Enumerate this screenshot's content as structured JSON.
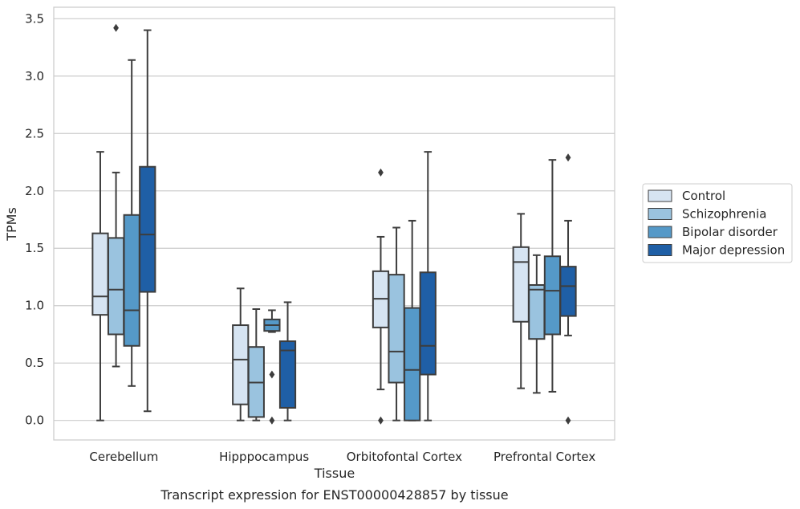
{
  "chart_data": {
    "type": "box",
    "title": "Transcript expression for ENST00000428857 by tissue",
    "xlabel": "Tissue",
    "ylabel": "TPMs",
    "ylim": [
      -0.17,
      3.6
    ],
    "yticks": [
      "0.0",
      "0.5",
      "1.0",
      "1.5",
      "2.0",
      "2.5",
      "3.0",
      "3.5"
    ],
    "grid": "horizontal",
    "legend_position": "right",
    "categories": [
      "Cerebellum",
      "Hipppocampus",
      "Orbitofontal Cortex",
      "Prefrontal Cortex"
    ],
    "series": [
      {
        "name": "Control",
        "color": "#d6e4f2",
        "boxes": [
          {
            "whislo": 0.0,
            "q1": 0.92,
            "med": 1.08,
            "q3": 1.63,
            "whishi": 2.34,
            "fliers": []
          },
          {
            "whislo": 0.0,
            "q1": 0.14,
            "med": 0.53,
            "q3": 0.83,
            "whishi": 1.15,
            "fliers": []
          },
          {
            "whislo": 0.27,
            "q1": 0.81,
            "med": 1.06,
            "q3": 1.3,
            "whishi": 1.6,
            "fliers": [
              0.0,
              2.16
            ]
          },
          {
            "whislo": 0.28,
            "q1": 0.86,
            "med": 1.38,
            "q3": 1.51,
            "whishi": 1.8,
            "fliers": []
          }
        ]
      },
      {
        "name": "Schizophrenia",
        "color": "#9ac3df",
        "boxes": [
          {
            "whislo": 0.47,
            "q1": 0.75,
            "med": 1.14,
            "q3": 1.59,
            "whishi": 2.16,
            "fliers": [
              3.42
            ]
          },
          {
            "whislo": 0.0,
            "q1": 0.03,
            "med": 0.33,
            "q3": 0.64,
            "whishi": 0.97,
            "fliers": []
          },
          {
            "whislo": 0.0,
            "q1": 0.33,
            "med": 0.6,
            "q3": 1.27,
            "whishi": 1.68,
            "fliers": []
          },
          {
            "whislo": 0.24,
            "q1": 0.71,
            "med": 1.14,
            "q3": 1.18,
            "whishi": 1.44,
            "fliers": []
          }
        ]
      },
      {
        "name": "Bipolar disorder",
        "color": "#5599c8",
        "boxes": [
          {
            "whislo": 0.3,
            "q1": 0.65,
            "med": 0.96,
            "q3": 1.79,
            "whishi": 3.14,
            "fliers": []
          },
          {
            "whislo": 0.77,
            "q1": 0.78,
            "med": 0.83,
            "q3": 0.88,
            "whishi": 0.96,
            "fliers": [
              0.4,
              0.0
            ]
          },
          {
            "whislo": 0.0,
            "q1": 0.0,
            "med": 0.44,
            "q3": 0.98,
            "whishi": 1.74,
            "fliers": []
          },
          {
            "whislo": 0.25,
            "q1": 0.75,
            "med": 1.13,
            "q3": 1.43,
            "whishi": 2.27,
            "fliers": []
          }
        ]
      },
      {
        "name": "Major depression",
        "color": "#1f5fa6",
        "boxes": [
          {
            "whislo": 0.08,
            "q1": 1.12,
            "med": 1.62,
            "q3": 2.21,
            "whishi": 3.4,
            "fliers": []
          },
          {
            "whislo": 0.0,
            "q1": 0.11,
            "med": 0.61,
            "q3": 0.69,
            "whishi": 1.03,
            "fliers": []
          },
          {
            "whislo": 0.0,
            "q1": 0.4,
            "med": 0.65,
            "q3": 1.29,
            "whishi": 2.34,
            "fliers": []
          },
          {
            "whislo": 0.74,
            "q1": 0.91,
            "med": 1.17,
            "q3": 1.34,
            "whishi": 1.74,
            "fliers": [
              0.0,
              2.29
            ]
          }
        ]
      }
    ]
  }
}
